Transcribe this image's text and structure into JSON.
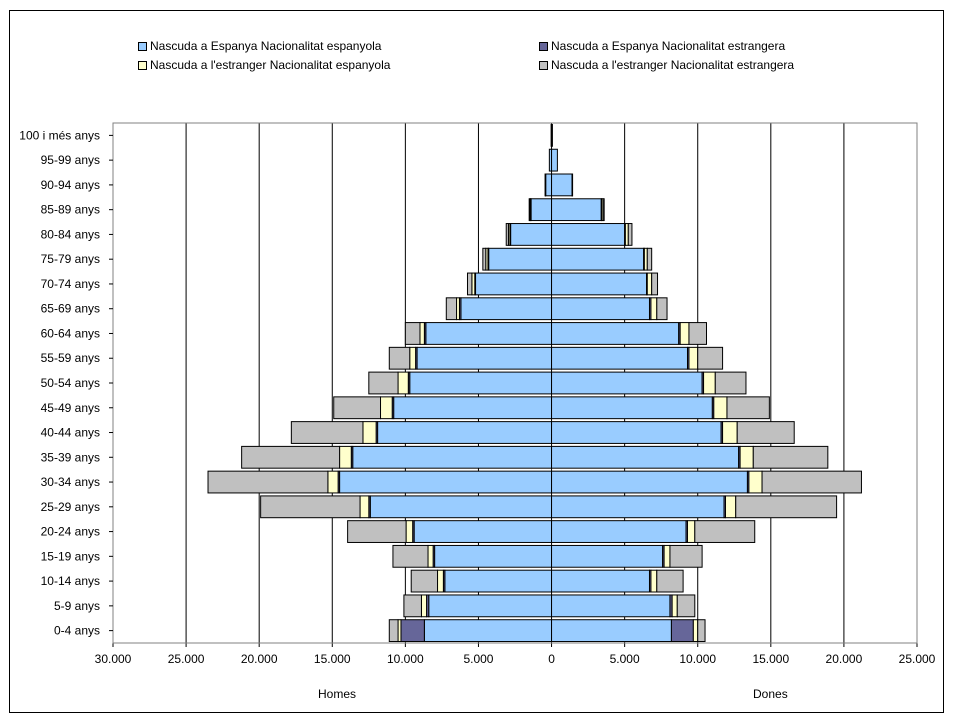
{
  "chart_data": {
    "type": "bar",
    "orientation": "horizontal",
    "stacked": true,
    "mirrored": true,
    "categories": [
      "0-4 anys",
      "5-9 anys",
      "10-14 anys",
      "15-19 anys",
      "20-24 anys",
      "25-29 anys",
      "30-34 anys",
      "35-39 anys",
      "40-44 anys",
      "45-49 anys",
      "50-54 anys",
      "55-59 anys",
      "60-64 anys",
      "65-69 anys",
      "70-74 anys",
      "75-79 anys",
      "80-84 anys",
      "85-89 anys",
      "90-94 anys",
      "95-99 anys",
      "100 i més anys"
    ],
    "sides": [
      {
        "label": "Homes",
        "direction": "left"
      },
      {
        "label": "Dones",
        "direction": "right"
      }
    ],
    "series": [
      {
        "name": "Nascuda a Espanya Nacionalitat espanyola",
        "color": "#99ccff",
        "homes": [
          8700,
          8400,
          7300,
          8000,
          9400,
          12400,
          14500,
          13600,
          11900,
          10800,
          9700,
          9200,
          8600,
          6200,
          5200,
          4300,
          2800,
          1400,
          400,
          150,
          30
        ],
        "dones": [
          8200,
          8100,
          6700,
          7600,
          9200,
          11800,
          13400,
          12800,
          11600,
          11000,
          10300,
          9300,
          8700,
          6700,
          6500,
          6300,
          5000,
          3400,
          1400,
          400,
          60
        ]
      },
      {
        "name": "Nascuda a Espanya Nacionalitat estrangera",
        "color": "#666699",
        "homes": [
          1600,
          150,
          100,
          100,
          100,
          100,
          100,
          100,
          100,
          100,
          100,
          100,
          100,
          100,
          50,
          50,
          50,
          30,
          10,
          0,
          0
        ],
        "dones": [
          1500,
          150,
          100,
          100,
          100,
          100,
          100,
          100,
          100,
          100,
          100,
          100,
          100,
          100,
          50,
          50,
          50,
          30,
          10,
          0,
          0
        ]
      },
      {
        "name": "Nascuda a l'estranger Nacionalitat espanyola",
        "color": "#ffffcc",
        "homes": [
          200,
          350,
          400,
          350,
          450,
          600,
          700,
          800,
          900,
          800,
          700,
          400,
          300,
          200,
          200,
          150,
          100,
          50,
          20,
          0,
          0
        ],
        "dones": [
          300,
          350,
          400,
          400,
          500,
          700,
          900,
          900,
          1000,
          900,
          800,
          600,
          600,
          400,
          300,
          200,
          200,
          100,
          20,
          0,
          0
        ]
      },
      {
        "name": "Nascuda a l'estranger Nacionalitat estrangera",
        "color": "#c0c0c0",
        "homes": [
          600,
          1200,
          1800,
          2400,
          4000,
          6800,
          8200,
          6700,
          4900,
          3200,
          2000,
          1400,
          1000,
          700,
          300,
          200,
          150,
          50,
          10,
          0,
          0
        ],
        "dones": [
          500,
          1200,
          1800,
          2200,
          4100,
          6900,
          6800,
          5100,
          3900,
          2900,
          2100,
          1700,
          1200,
          700,
          400,
          300,
          250,
          70,
          10,
          0,
          0
        ]
      }
    ],
    "xlim": [
      -30000,
      25000
    ],
    "x_ticks": [
      {
        "value": -30000,
        "label": "30.000"
      },
      {
        "value": -25000,
        "label": "25.000"
      },
      {
        "value": -20000,
        "label": "20.000"
      },
      {
        "value": -15000,
        "label": "15.000"
      },
      {
        "value": -10000,
        "label": "10.000"
      },
      {
        "value": -5000,
        "label": "5.000"
      },
      {
        "value": 0,
        "label": "0"
      },
      {
        "value": 5000,
        "label": "5.000"
      },
      {
        "value": 10000,
        "label": "10.000"
      },
      {
        "value": 15000,
        "label": "15.000"
      },
      {
        "value": 20000,
        "label": "20.000"
      },
      {
        "value": 25000,
        "label": "25.000"
      }
    ],
    "grid": true,
    "legend_position": "top"
  }
}
